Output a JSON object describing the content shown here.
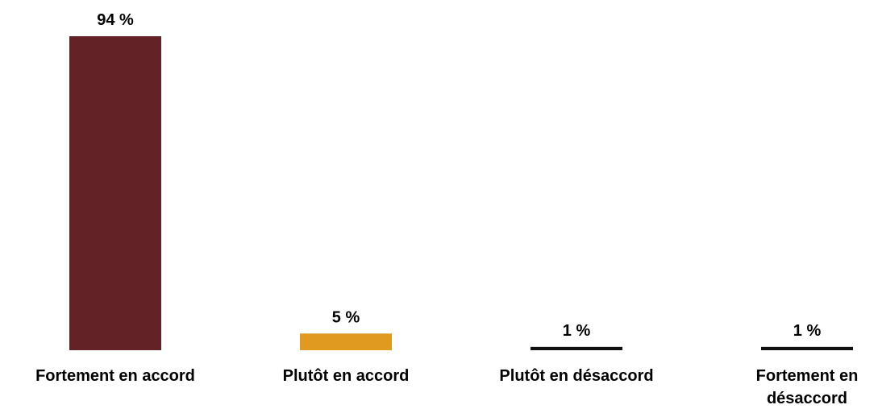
{
  "chart_data": {
    "type": "bar",
    "categories": [
      "Fortement en accord",
      "Plutôt en accord",
      "Plutôt en désaccord",
      "Fortement en désaccord"
    ],
    "values": [
      94,
      5,
      1,
      1
    ],
    "value_labels": [
      "94 %",
      "5 %",
      "1 %",
      "1 %"
    ],
    "colors": [
      "#632326",
      "#e09a1f",
      "#111111",
      "#111111"
    ]
  }
}
